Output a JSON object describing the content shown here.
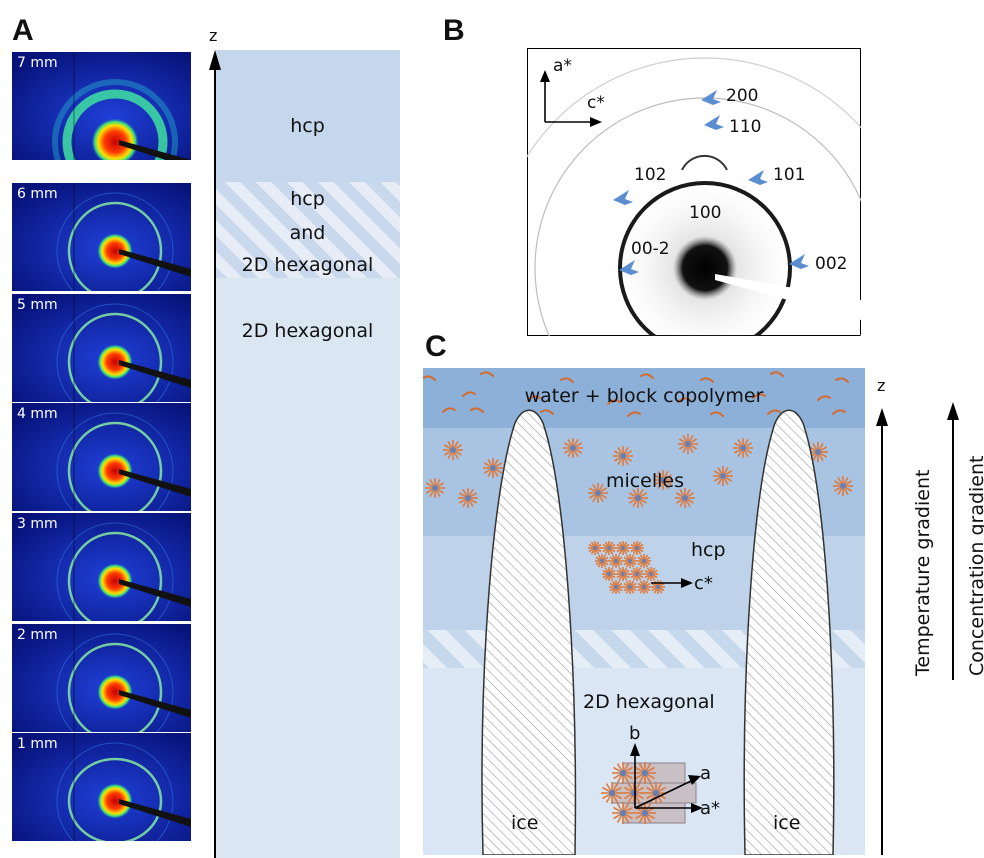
{
  "panels": {
    "a": {
      "letter": "A",
      "axis_label": "z",
      "tiles": [
        {
          "label": "7 mm"
        },
        {
          "label": "6 mm"
        },
        {
          "label": "5 mm"
        },
        {
          "label": "4 mm"
        },
        {
          "label": "3 mm"
        },
        {
          "label": "2 mm"
        },
        {
          "label": "1 mm"
        }
      ],
      "regions": {
        "top": "hcp",
        "middle_line1": "hcp",
        "middle_line2": "and",
        "middle_line3": "2D hexagonal",
        "bottom": "2D hexagonal"
      }
    },
    "b": {
      "letter": "B",
      "axis_vertical": "a*",
      "axis_horizontal": "c*",
      "reflections": {
        "r200": "200",
        "r110": "110",
        "r102": "102",
        "r101": "101",
        "r100": "100",
        "r00m2": "00-2",
        "r002": "002"
      }
    },
    "c": {
      "letter": "C",
      "layers": {
        "top": "water + block copolymer",
        "micelles": "micelles",
        "hcp": "hcp",
        "hcp_axis": "c*",
        "hex": "2D hexagonal",
        "hex_axis_b": "b",
        "hex_axis_a": "a",
        "hex_axis_astar": "a*"
      },
      "ice_left": "ice",
      "ice_right": "ice",
      "z_label": "z",
      "temperature_gradient": "Temperature  gradient",
      "concentration_gradient": "Concentration  gradient"
    }
  },
  "colors": {
    "layer_top": "#8cb0d8",
    "layer_micelles": "#a9c4e2",
    "layer_hcp": "#bed3ea",
    "layer_hex": "#dae6f3",
    "arrow_blue": "#5b8ed0",
    "micelle_orange": "#e07a3a"
  }
}
